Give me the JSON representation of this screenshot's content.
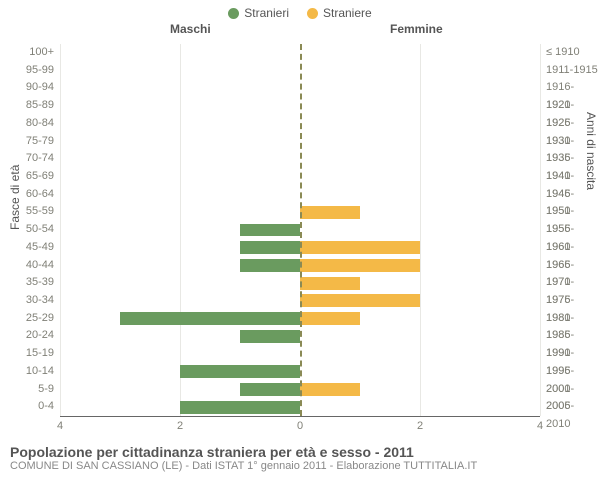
{
  "legend": {
    "male": {
      "label": "Stranieri",
      "color": "#6a9b5f"
    },
    "female": {
      "label": "Straniere",
      "color": "#f4b947"
    }
  },
  "headers": {
    "left": "Maschi",
    "right": "Femmine"
  },
  "axis_titles": {
    "left": "Fasce di età",
    "right": "Anni di nascita"
  },
  "chart": {
    "type": "population-pyramid",
    "x_max": 4,
    "x_ticks": [
      4,
      2,
      0,
      2,
      4
    ],
    "bar_fill_ratio": 0.73,
    "colors": {
      "male_bar": "#6a9b5f",
      "female_bar": "#f4b947",
      "grid": "#e8e8e4",
      "zero_dash": "#8a8a55",
      "tick_text": "#808077",
      "axis_line": "#666666"
    },
    "fontsize": {
      "tick": 11,
      "header": 12,
      "axis_title": 12
    },
    "rows": [
      {
        "age": "100+",
        "birth": "≤ 1910",
        "m": 0,
        "f": 0
      },
      {
        "age": "95-99",
        "birth": "1911-1915",
        "m": 0,
        "f": 0
      },
      {
        "age": "90-94",
        "birth": "1916-1920",
        "m": 0,
        "f": 0
      },
      {
        "age": "85-89",
        "birth": "1921-1925",
        "m": 0,
        "f": 0
      },
      {
        "age": "80-84",
        "birth": "1926-1930",
        "m": 0,
        "f": 0
      },
      {
        "age": "75-79",
        "birth": "1931-1935",
        "m": 0,
        "f": 0
      },
      {
        "age": "70-74",
        "birth": "1936-1940",
        "m": 0,
        "f": 0
      },
      {
        "age": "65-69",
        "birth": "1941-1945",
        "m": 0,
        "f": 0
      },
      {
        "age": "60-64",
        "birth": "1946-1950",
        "m": 0,
        "f": 0
      },
      {
        "age": "55-59",
        "birth": "1951-1955",
        "m": 0,
        "f": 1
      },
      {
        "age": "50-54",
        "birth": "1956-1960",
        "m": 1,
        "f": 0
      },
      {
        "age": "45-49",
        "birth": "1961-1965",
        "m": 1,
        "f": 2
      },
      {
        "age": "40-44",
        "birth": "1966-1970",
        "m": 1,
        "f": 2
      },
      {
        "age": "35-39",
        "birth": "1971-1975",
        "m": 0,
        "f": 1
      },
      {
        "age": "30-34",
        "birth": "1976-1980",
        "m": 0,
        "f": 2
      },
      {
        "age": "25-29",
        "birth": "1981-1985",
        "m": 3,
        "f": 1
      },
      {
        "age": "20-24",
        "birth": "1986-1990",
        "m": 1,
        "f": 0
      },
      {
        "age": "15-19",
        "birth": "1991-1995",
        "m": 0,
        "f": 0
      },
      {
        "age": "10-14",
        "birth": "1996-2000",
        "m": 2,
        "f": 0
      },
      {
        "age": "5-9",
        "birth": "2001-2005",
        "m": 1,
        "f": 1
      },
      {
        "age": "0-4",
        "birth": "2006-2010",
        "m": 2,
        "f": 0
      }
    ]
  },
  "footer": {
    "title": "Popolazione per cittadinanza straniera per età e sesso - 2011",
    "subtitle": "COMUNE DI SAN CASSIANO (LE) - Dati ISTAT 1° gennaio 2011 - Elaborazione TUTTITALIA.IT"
  }
}
